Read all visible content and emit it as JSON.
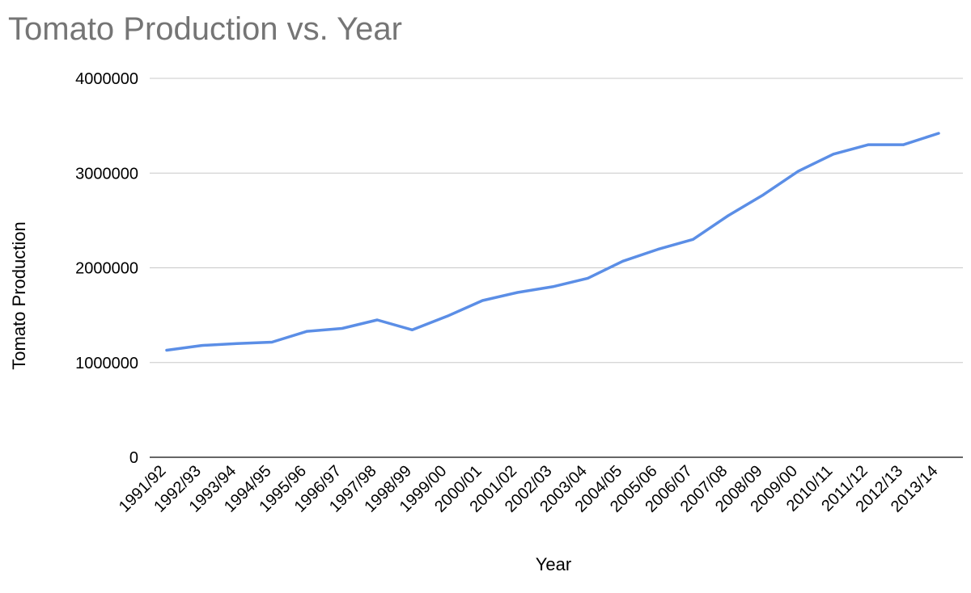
{
  "chart_data": {
    "type": "line",
    "title": "Tomato Production vs. Year",
    "xlabel": "Year",
    "ylabel": "Tomato Production",
    "ylim": [
      0,
      4000000
    ],
    "yticks": [
      0,
      1000000,
      2000000,
      3000000,
      4000000
    ],
    "ytick_labels": [
      "0",
      "1000000",
      "2000000",
      "3000000",
      "4000000"
    ],
    "grid": true,
    "legend": "none",
    "line_color": "#5b8ee6",
    "categories": [
      "1991/92",
      "1992/93",
      "1993/94",
      "1994/95",
      "1995/96",
      "1996/97",
      "1997/98",
      "1998/99",
      "1999/00",
      "2000/01",
      "2001/02",
      "2002/03",
      "2003/04",
      "2004/05",
      "2005/06",
      "2006/07",
      "2007/08",
      "2008/09",
      "2009/00",
      "2010/11",
      "2011/12",
      "2012/13",
      "2013/14"
    ],
    "series": [
      {
        "values": [
          1130000,
          1180000,
          1200000,
          1215000,
          1330000,
          1360000,
          1450000,
          1345000,
          1490000,
          1655000,
          1740000,
          1800000,
          1890000,
          2070000,
          2195000,
          2300000,
          2550000,
          2770000,
          3020000,
          3200000,
          3300000,
          3300000,
          3420000
        ]
      }
    ]
  }
}
